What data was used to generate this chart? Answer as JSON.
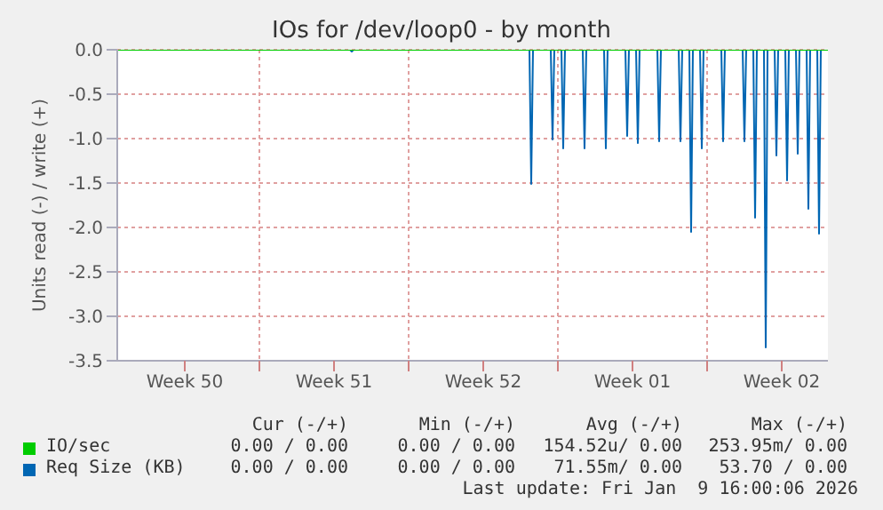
{
  "chart_data": {
    "type": "line",
    "title": "IOs for /dev/loop0 - by month",
    "ylabel": "Units read (-) / write (+)",
    "xlim": [
      "2025-12-08T08:00",
      "2026-01-10T16:00"
    ],
    "xticks": [
      {
        "value": "2025-12-11T12:00",
        "label": "Week 50"
      },
      {
        "value": "2025-12-15T00:00",
        "label": null
      },
      {
        "value": "2025-12-18T12:00",
        "label": "Week 51"
      },
      {
        "value": "2025-12-22T00:00",
        "label": null
      },
      {
        "value": "2025-12-25T12:00",
        "label": "Week 52"
      },
      {
        "value": "2025-12-29T00:00",
        "label": null
      },
      {
        "value": "2026-01-01T12:00",
        "label": "Week 01"
      },
      {
        "value": "2026-01-05T00:00",
        "label": null
      },
      {
        "value": "2026-01-08T12:00",
        "label": "Week 02"
      }
    ],
    "ylim": [
      -3.5,
      0
    ],
    "yticks": [
      {
        "value": -3.5,
        "label": "-3.5"
      },
      {
        "value": -3,
        "label": "-3.0"
      },
      {
        "value": -2.5,
        "label": "-2.5"
      },
      {
        "value": -2,
        "label": "-2.0"
      },
      {
        "value": -1.5,
        "label": "-1.5"
      },
      {
        "value": -1,
        "label": "-1.0"
      },
      {
        "value": -0.5,
        "label": "-0.5"
      },
      {
        "value": 0,
        "label": "0.0"
      }
    ],
    "grid": true,
    "legend": "bottom",
    "marker": "none",
    "series": [
      {
        "name": "IO/sec",
        "color": "#00cc00",
        "x": [
          "2025-12-08T08:00",
          "2026-01-10T16:00"
        ],
        "values": [
          0,
          0
        ]
      },
      {
        "name": "Req Size (KB)",
        "color": "#0066b3",
        "x": [
          "2025-12-08T08:00",
          "2025-12-19T06:00",
          "2025-12-19T08:00",
          "2025-12-19T10:00",
          "2025-12-27T16:00",
          "2025-12-27T18:00",
          "2025-12-27T20:00",
          "2025-12-28T16:00",
          "2025-12-28T18:00",
          "2025-12-28T20:00",
          "2025-12-29T04:00",
          "2025-12-29T06:00",
          "2025-12-29T08:00",
          "2025-12-30T04:00",
          "2025-12-30T06:00",
          "2025-12-30T08:00",
          "2025-12-31T04:00",
          "2025-12-31T06:00",
          "2025-12-31T08:00",
          "2026-01-01T04:00",
          "2026-01-01T06:00",
          "2026-01-01T08:00",
          "2026-01-01T16:00",
          "2026-01-01T18:00",
          "2026-01-01T20:00",
          "2026-01-02T16:00",
          "2026-01-02T18:00",
          "2026-01-02T20:00",
          "2026-01-03T16:00",
          "2026-01-03T18:00",
          "2026-01-03T20:00",
          "2026-01-04T04:00",
          "2026-01-04T06:00",
          "2026-01-04T08:00",
          "2026-01-04T16:00",
          "2026-01-04T18:00",
          "2026-01-04T20:00",
          "2026-01-05T16:00",
          "2026-01-05T18:00",
          "2026-01-05T20:00",
          "2026-01-06T16:00",
          "2026-01-06T18:00",
          "2026-01-06T20:00",
          "2026-01-07T04:00",
          "2026-01-07T06:00",
          "2026-01-07T08:00",
          "2026-01-07T16:00",
          "2026-01-07T18:00",
          "2026-01-07T20:00",
          "2026-01-08T04:00",
          "2026-01-08T06:00",
          "2026-01-08T08:00",
          "2026-01-08T16:00",
          "2026-01-08T18:00",
          "2026-01-08T20:00",
          "2026-01-09T04:00",
          "2026-01-09T06:00",
          "2026-01-09T08:00",
          "2026-01-09T16:00",
          "2026-01-09T18:00",
          "2026-01-09T20:00",
          "2026-01-10T04:00",
          "2026-01-10T06:00",
          "2026-01-10T08:00",
          "2026-01-10T16:00"
        ],
        "values": [
          0,
          0,
          -0.02,
          0,
          0,
          -1.51,
          0,
          0,
          -1.01,
          0,
          0,
          -1.11,
          0,
          0,
          -1.11,
          0,
          0,
          -1.11,
          0,
          0,
          -0.97,
          0,
          0,
          -1.05,
          0,
          0,
          -1.03,
          0,
          0,
          -1.03,
          0,
          0,
          -2.05,
          0,
          0,
          -1.11,
          0,
          0,
          -1.03,
          0,
          0,
          -1.03,
          0,
          0,
          -1.89,
          0,
          0,
          -3.35,
          0,
          0,
          -1.19,
          0,
          0,
          -1.47,
          0,
          0,
          -1.17,
          0,
          0,
          -1.79,
          0,
          0,
          -2.07,
          0,
          0
        ]
      }
    ],
    "annotations": [
      "Cur (-/+)",
      "Min (-/+)",
      "Avg (-/+)",
      "Max (-/+)",
      "0.00 / 0.00",
      "0.00 / 0.00",
      "154.52u/ 0.00",
      "253.95m/ 0.00",
      "0.00 / 0.00",
      "0.00 / 0.00",
      "71.55m/ 0.00",
      "53.70 / 0.00",
      "Last update: Fri Jan  9 16:00:06 2026"
    ]
  }
}
